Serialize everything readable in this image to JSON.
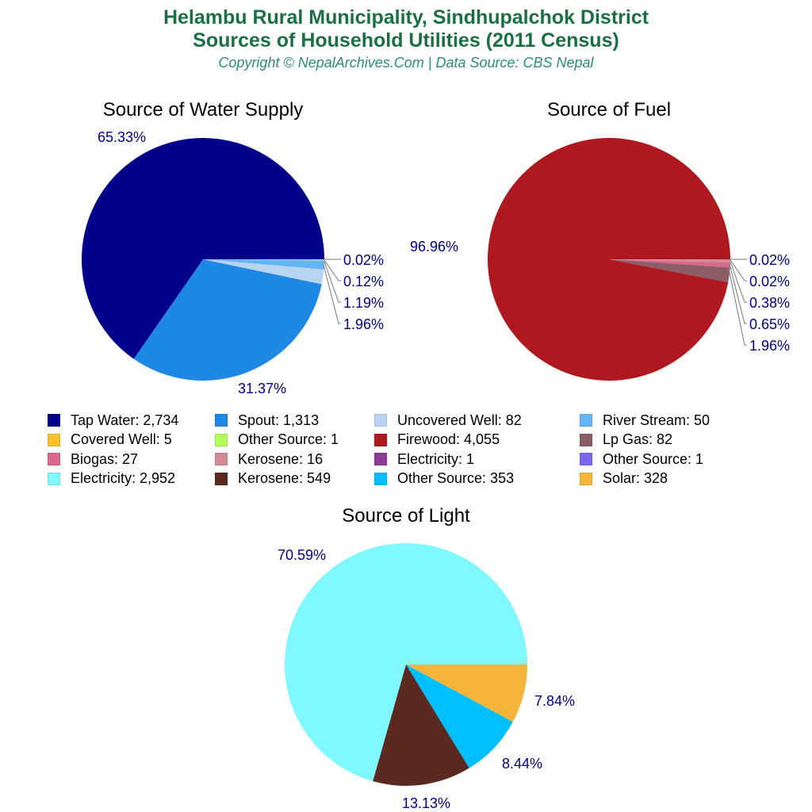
{
  "header": {
    "title_line1": "Helambu Rural Municipality, Sindhupalchok District",
    "title_line2": "Sources of Household Utilities (2011 Census)",
    "subtitle": "Copyright © NepalArchives.Com | Data Source: CBS Nepal"
  },
  "chart_data": [
    {
      "type": "pie",
      "title": "Source of Water Supply",
      "categories": [
        "Tap Water",
        "Spout",
        "Uncovered Well",
        "River Stream",
        "Covered Well",
        "Other Source"
      ],
      "values": [
        2734,
        1313,
        82,
        50,
        5,
        1
      ],
      "percent_labels": [
        "65.33%",
        "31.37%",
        "1.96%",
        "1.19%",
        "0.12%",
        "0.02%"
      ],
      "colors": [
        "#00008b",
        "#1e88e5",
        "#b8d4f0",
        "#64b5f6",
        "#fbc02d",
        "#b2ff59"
      ]
    },
    {
      "type": "pie",
      "title": "Source of Fuel",
      "categories": [
        "Firewood",
        "Lp Gas",
        "Biogas",
        "Kerosene",
        "Electricity",
        "Other Source"
      ],
      "values": [
        4055,
        82,
        27,
        16,
        1,
        1
      ],
      "percent_labels": [
        "96.96%",
        "1.96%",
        "0.65%",
        "0.38%",
        "0.02%",
        "0.02%"
      ],
      "colors": [
        "#b01820",
        "#8b5e66",
        "#d9688a",
        "#d48a94",
        "#8b3a96",
        "#7b68ee"
      ]
    },
    {
      "type": "pie",
      "title": "Source of Light",
      "categories": [
        "Electricity",
        "Kerosene",
        "Other Source",
        "Solar"
      ],
      "values": [
        2952,
        549,
        353,
        328
      ],
      "percent_labels": [
        "70.59%",
        "13.13%",
        "8.44%",
        "7.84%"
      ],
      "colors": [
        "#80f8ff",
        "#5a2a20",
        "#00bfff",
        "#f5b53a"
      ]
    }
  ],
  "legend": [
    {
      "label": "Tap Water: 2,734",
      "color": "#00008b"
    },
    {
      "label": "Spout: 1,313",
      "color": "#1e88e5"
    },
    {
      "label": "Uncovered Well: 82",
      "color": "#b8d4f0"
    },
    {
      "label": "River Stream: 50",
      "color": "#64b5f6"
    },
    {
      "label": "Covered Well: 5",
      "color": "#fbc02d"
    },
    {
      "label": "Other Source: 1",
      "color": "#b2ff59"
    },
    {
      "label": "Firewood: 4,055",
      "color": "#b01820"
    },
    {
      "label": "Lp Gas: 82",
      "color": "#8b5e66"
    },
    {
      "label": "Biogas: 27",
      "color": "#d9688a"
    },
    {
      "label": "Kerosene: 16",
      "color": "#d48a94"
    },
    {
      "label": "Electricity: 1",
      "color": "#8b3a96"
    },
    {
      "label": "Other Source: 1",
      "color": "#7b68ee"
    },
    {
      "label": "Electricity: 2,952",
      "color": "#80f8ff"
    },
    {
      "label": "Kerosene: 549",
      "color": "#5a2a20"
    },
    {
      "label": "Other Source: 353",
      "color": "#00bfff"
    },
    {
      "label": "Solar: 328",
      "color": "#f5b53a"
    }
  ]
}
